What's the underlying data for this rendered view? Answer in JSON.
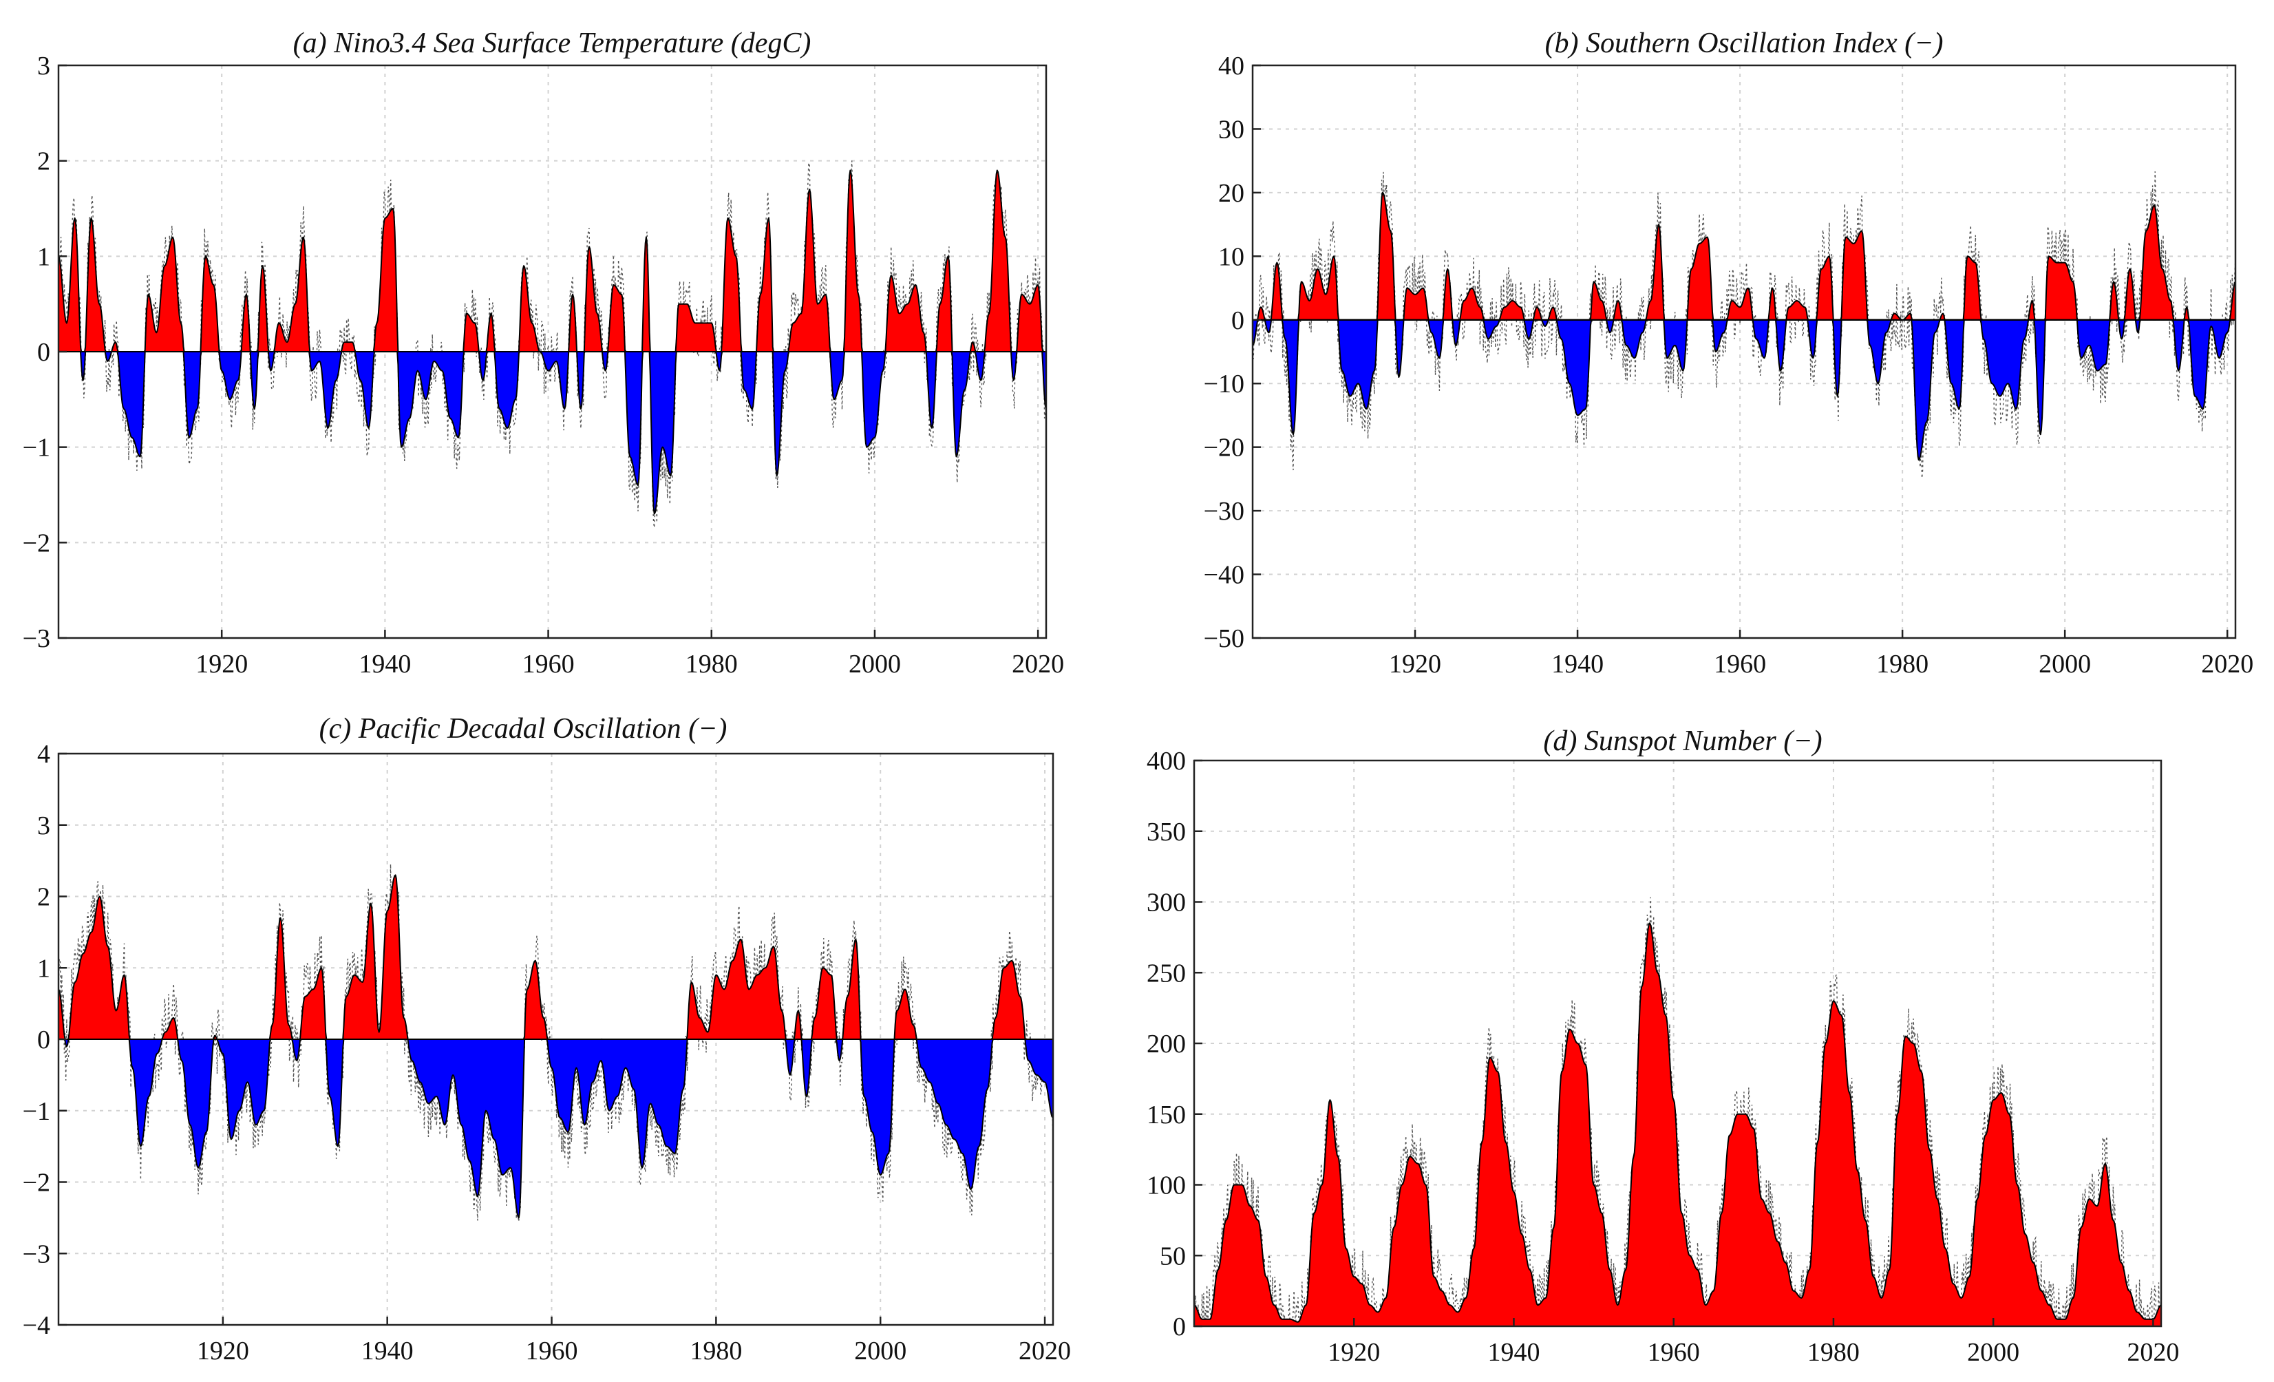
{
  "colors": {
    "positive": "#ff0000",
    "negative": "#0000ff",
    "raw": "#555555",
    "grid": "#d2d2d2"
  },
  "chart_data": [
    {
      "id": "nino34",
      "type": "area",
      "title": "(a) Nino3.4 Sea Surface Temperature (degC)",
      "xlim": [
        1900,
        2021
      ],
      "ylim": [
        -3,
        3
      ],
      "xticks": [
        1920,
        1940,
        1960,
        1980,
        2000,
        2020
      ],
      "yticks": [
        -3,
        -2,
        -1,
        0,
        1,
        2,
        3
      ],
      "grid": true,
      "baseline": 0,
      "fill_above": "red",
      "fill_below": "blue",
      "noise_amplitude": 0.35,
      "x": [
        1900,
        1901,
        1902,
        1903,
        1904,
        1905,
        1906,
        1907,
        1908,
        1909,
        1910,
        1911,
        1912,
        1913,
        1914,
        1915,
        1916,
        1917,
        1918,
        1919,
        1920,
        1921,
        1922,
        1923,
        1924,
        1925,
        1926,
        1927,
        1928,
        1929,
        1930,
        1931,
        1932,
        1933,
        1934,
        1935,
        1936,
        1937,
        1938,
        1939,
        1940,
        1941,
        1942,
        1943,
        1944,
        1945,
        1946,
        1947,
        1948,
        1949,
        1950,
        1951,
        1952,
        1953,
        1954,
        1955,
        1956,
        1957,
        1958,
        1959,
        1960,
        1961,
        1962,
        1963,
        1964,
        1965,
        1966,
        1967,
        1968,
        1969,
        1970,
        1971,
        1972,
        1973,
        1974,
        1975,
        1976,
        1977,
        1978,
        1979,
        1980,
        1981,
        1982,
        1983,
        1984,
        1985,
        1986,
        1987,
        1988,
        1989,
        1990,
        1991,
        1992,
        1993,
        1994,
        1995,
        1996,
        1997,
        1998,
        1999,
        2000,
        2001,
        2002,
        2003,
        2004,
        2005,
        2006,
        2007,
        2008,
        2009,
        2010,
        2011,
        2012,
        2013,
        2014,
        2015,
        2016,
        2017,
        2018,
        2019,
        2020,
        2021
      ],
      "values": [
        1.0,
        0.3,
        1.4,
        -0.3,
        1.4,
        0.5,
        -0.1,
        0.1,
        -0.6,
        -0.9,
        -1.1,
        0.6,
        0.2,
        0.9,
        1.2,
        0.3,
        -0.9,
        -0.6,
        1.0,
        0.7,
        -0.2,
        -0.5,
        -0.3,
        0.6,
        -0.6,
        0.9,
        -0.2,
        0.3,
        0.1,
        0.5,
        1.2,
        -0.2,
        -0.1,
        -0.8,
        -0.3,
        0.1,
        0.1,
        -0.3,
        -0.8,
        0.3,
        1.4,
        1.5,
        -1.0,
        -0.7,
        -0.2,
        -0.5,
        -0.1,
        -0.2,
        -0.7,
        -0.9,
        0.4,
        0.3,
        -0.3,
        0.4,
        -0.6,
        -0.8,
        -0.5,
        0.9,
        0.3,
        0.0,
        -0.2,
        -0.1,
        -0.6,
        0.6,
        -0.6,
        1.1,
        0.4,
        -0.2,
        0.7,
        0.6,
        -1.1,
        -1.4,
        1.2,
        -1.7,
        -1.0,
        -1.3,
        0.5,
        0.5,
        0.3,
        0.3,
        0.3,
        -0.2,
        1.4,
        1.0,
        -0.4,
        -0.6,
        0.6,
        1.4,
        -1.3,
        -0.2,
        0.3,
        0.4,
        1.7,
        0.5,
        0.6,
        -0.5,
        -0.3,
        1.9,
        0.6,
        -1.0,
        -0.9,
        -0.2,
        0.8,
        0.4,
        0.5,
        0.7,
        0.2,
        -0.8,
        0.5,
        1.0,
        -1.1,
        -0.4,
        0.1,
        -0.3,
        0.4,
        1.9,
        1.2,
        -0.3,
        0.6,
        0.5,
        0.7,
        -0.6
      ]
    },
    {
      "id": "soi",
      "type": "area",
      "title": "(b) Southern Oscillation Index (−)",
      "xlim": [
        1900,
        2021
      ],
      "ylim": [
        -50,
        40
      ],
      "xticks": [
        1920,
        1940,
        1960,
        1980,
        2000,
        2020
      ],
      "yticks": [
        -50,
        -40,
        -30,
        -20,
        -10,
        0,
        10,
        20,
        30,
        40
      ],
      "grid": true,
      "baseline": 0,
      "fill_above": "red",
      "fill_below": "blue",
      "noise_amplitude": 6,
      "x": [
        1900,
        1901,
        1902,
        1903,
        1904,
        1905,
        1906,
        1907,
        1908,
        1909,
        1910,
        1911,
        1912,
        1913,
        1914,
        1915,
        1916,
        1917,
        1918,
        1919,
        1920,
        1921,
        1922,
        1923,
        1924,
        1925,
        1926,
        1927,
        1928,
        1929,
        1930,
        1931,
        1932,
        1933,
        1934,
        1935,
        1936,
        1937,
        1938,
        1939,
        1940,
        1941,
        1942,
        1943,
        1944,
        1945,
        1946,
        1947,
        1948,
        1949,
        1950,
        1951,
        1952,
        1953,
        1954,
        1955,
        1956,
        1957,
        1958,
        1959,
        1960,
        1961,
        1962,
        1963,
        1964,
        1965,
        1966,
        1967,
        1968,
        1969,
        1970,
        1971,
        1972,
        1973,
        1974,
        1975,
        1976,
        1977,
        1978,
        1979,
        1980,
        1981,
        1982,
        1983,
        1984,
        1985,
        1986,
        1987,
        1988,
        1989,
        1990,
        1991,
        1992,
        1993,
        1994,
        1995,
        1996,
        1997,
        1998,
        1999,
        2000,
        2001,
        2002,
        2003,
        2004,
        2005,
        2006,
        2007,
        2008,
        2009,
        2010,
        2011,
        2012,
        2013,
        2014,
        2015,
        2016,
        2017,
        2018,
        2019,
        2020,
        2021
      ],
      "values": [
        -4,
        2,
        -2,
        9,
        -3,
        -18,
        6,
        3,
        8,
        4,
        10,
        -8,
        -12,
        -10,
        -14,
        -8,
        20,
        14,
        -9,
        5,
        4,
        5,
        -2,
        -6,
        8,
        -4,
        3,
        5,
        2,
        -3,
        -1,
        2,
        3,
        2,
        -3,
        2,
        -1,
        2,
        -3,
        -10,
        -15,
        -14,
        6,
        3,
        -2,
        3,
        -4,
        -6,
        -2,
        3,
        15,
        -6,
        -4,
        -8,
        8,
        12,
        13,
        -5,
        -2,
        3,
        2,
        5,
        -3,
        -6,
        5,
        -8,
        2,
        3,
        2,
        -6,
        8,
        10,
        -12,
        13,
        12,
        14,
        -4,
        -10,
        -2,
        1,
        0,
        1,
        -22,
        -16,
        -2,
        1,
        -10,
        -14,
        10,
        9,
        -3,
        -10,
        -12,
        -10,
        -14,
        -3,
        3,
        -18,
        10,
        9,
        9,
        6,
        -6,
        -4,
        -8,
        -7,
        6,
        -3,
        8,
        -2,
        14,
        18,
        8,
        3,
        -8,
        2,
        -12,
        -14,
        -1,
        -6,
        -2,
        6
      ]
    },
    {
      "id": "pdo",
      "type": "area",
      "title": "(c) Pacific Decadal Oscillation (−)",
      "xlim": [
        1900,
        2021
      ],
      "ylim": [
        -4,
        4
      ],
      "xticks": [
        1920,
        1940,
        1960,
        1980,
        2000,
        2020
      ],
      "yticks": [
        -4,
        -3,
        -2,
        -1,
        0,
        1,
        2,
        3,
        4
      ],
      "grid": true,
      "baseline": 0,
      "fill_above": "red",
      "fill_below": "blue",
      "noise_amplitude": 0.5,
      "x": [
        1900,
        1901,
        1902,
        1903,
        1904,
        1905,
        1906,
        1907,
        1908,
        1909,
        1910,
        1911,
        1912,
        1913,
        1914,
        1915,
        1916,
        1917,
        1918,
        1919,
        1920,
        1921,
        1922,
        1923,
        1924,
        1925,
        1926,
        1927,
        1928,
        1929,
        1930,
        1931,
        1932,
        1933,
        1934,
        1935,
        1936,
        1937,
        1938,
        1939,
        1940,
        1941,
        1942,
        1943,
        1944,
        1945,
        1946,
        1947,
        1948,
        1949,
        1950,
        1951,
        1952,
        1953,
        1954,
        1955,
        1956,
        1957,
        1958,
        1959,
        1960,
        1961,
        1962,
        1963,
        1964,
        1965,
        1966,
        1967,
        1968,
        1969,
        1970,
        1971,
        1972,
        1973,
        1974,
        1975,
        1976,
        1977,
        1978,
        1979,
        1980,
        1981,
        1982,
        1983,
        1984,
        1985,
        1986,
        1987,
        1988,
        1989,
        1990,
        1991,
        1992,
        1993,
        1994,
        1995,
        1996,
        1997,
        1998,
        1999,
        2000,
        2001,
        2002,
        2003,
        2004,
        2005,
        2006,
        2007,
        2008,
        2009,
        2010,
        2011,
        2012,
        2013,
        2014,
        2015,
        2016,
        2017,
        2018,
        2019,
        2020,
        2021
      ],
      "values": [
        0.7,
        -0.1,
        0.8,
        1.2,
        1.5,
        2.0,
        1.3,
        0.4,
        0.9,
        -0.4,
        -1.5,
        -0.8,
        -0.2,
        0.1,
        0.3,
        -0.3,
        -1.2,
        -1.8,
        -1.3,
        0.05,
        -0.2,
        -1.4,
        -1.0,
        -0.6,
        -1.2,
        -1.0,
        0.2,
        1.7,
        0.2,
        -0.3,
        0.6,
        0.7,
        1.0,
        -0.8,
        -1.5,
        0.6,
        0.9,
        0.8,
        1.9,
        0.1,
        1.8,
        2.3,
        0.3,
        -0.3,
        -0.6,
        -0.9,
        -0.8,
        -1.2,
        -0.5,
        -1.2,
        -1.7,
        -2.2,
        -1.0,
        -1.4,
        -1.9,
        -1.8,
        -2.5,
        0.7,
        1.1,
        0.3,
        -0.4,
        -1.1,
        -1.3,
        -0.4,
        -1.2,
        -0.6,
        -0.3,
        -1.0,
        -0.8,
        -0.4,
        -0.7,
        -1.8,
        -0.9,
        -1.2,
        -1.5,
        -1.6,
        -0.7,
        0.8,
        0.3,
        0.1,
        0.9,
        0.7,
        1.1,
        1.4,
        0.7,
        0.9,
        1.0,
        1.3,
        0.4,
        -0.5,
        0.4,
        -0.8,
        0.3,
        1.0,
        0.9,
        -0.3,
        0.6,
        1.4,
        -0.8,
        -1.3,
        -1.9,
        -1.6,
        0.4,
        0.7,
        0.2,
        -0.4,
        -0.6,
        -0.9,
        -1.2,
        -1.4,
        -1.6,
        -2.1,
        -1.5,
        -0.7,
        0.3,
        1.0,
        1.1,
        0.6,
        -0.3,
        -0.5,
        -0.6,
        -1.1
      ]
    },
    {
      "id": "sunspot",
      "type": "area",
      "title": "(d) Sunspot Number (−)",
      "xlim": [
        1900,
        2021
      ],
      "ylim": [
        0,
        400
      ],
      "xticks": [
        1920,
        1940,
        1960,
        1980,
        2000,
        2020
      ],
      "yticks": [
        0,
        50,
        100,
        150,
        200,
        250,
        300,
        350,
        400
      ],
      "grid": true,
      "baseline": 0,
      "fill_above": "red",
      "fill_below": "blue",
      "noise_amplitude": 25,
      "x": [
        1900,
        1901,
        1902,
        1903,
        1904,
        1905,
        1906,
        1907,
        1908,
        1909,
        1910,
        1911,
        1912,
        1913,
        1914,
        1915,
        1916,
        1917,
        1918,
        1919,
        1920,
        1921,
        1922,
        1923,
        1924,
        1925,
        1926,
        1927,
        1928,
        1929,
        1930,
        1931,
        1932,
        1933,
        1934,
        1935,
        1936,
        1937,
        1938,
        1939,
        1940,
        1941,
        1942,
        1943,
        1944,
        1945,
        1946,
        1947,
        1948,
        1949,
        1950,
        1951,
        1952,
        1953,
        1954,
        1955,
        1956,
        1957,
        1958,
        1959,
        1960,
        1961,
        1962,
        1963,
        1964,
        1965,
        1966,
        1967,
        1968,
        1969,
        1970,
        1971,
        1972,
        1973,
        1974,
        1975,
        1976,
        1977,
        1978,
        1979,
        1980,
        1981,
        1982,
        1983,
        1984,
        1985,
        1986,
        1987,
        1988,
        1989,
        1990,
        1991,
        1992,
        1993,
        1994,
        1995,
        1996,
        1997,
        1998,
        1999,
        2000,
        2001,
        2002,
        2003,
        2004,
        2005,
        2006,
        2007,
        2008,
        2009,
        2010,
        2011,
        2012,
        2013,
        2014,
        2015,
        2016,
        2017,
        2018,
        2019,
        2020,
        2021
      ],
      "values": [
        15,
        5,
        5,
        40,
        75,
        100,
        100,
        85,
        75,
        35,
        15,
        5,
        5,
        3,
        15,
        80,
        100,
        160,
        120,
        55,
        35,
        30,
        15,
        10,
        20,
        70,
        100,
        120,
        115,
        100,
        35,
        25,
        15,
        10,
        20,
        55,
        130,
        190,
        180,
        130,
        95,
        65,
        40,
        15,
        20,
        70,
        180,
        210,
        200,
        185,
        100,
        80,
        40,
        15,
        40,
        120,
        240,
        285,
        250,
        220,
        160,
        80,
        50,
        40,
        15,
        25,
        80,
        135,
        150,
        150,
        140,
        90,
        80,
        60,
        45,
        25,
        20,
        40,
        130,
        200,
        230,
        220,
        165,
        110,
        75,
        35,
        20,
        40,
        150,
        205,
        200,
        180,
        125,
        90,
        55,
        30,
        20,
        35,
        90,
        135,
        160,
        165,
        150,
        100,
        65,
        45,
        25,
        15,
        5,
        5,
        20,
        70,
        90,
        85,
        115,
        75,
        45,
        25,
        10,
        5,
        5,
        15
      ]
    }
  ]
}
